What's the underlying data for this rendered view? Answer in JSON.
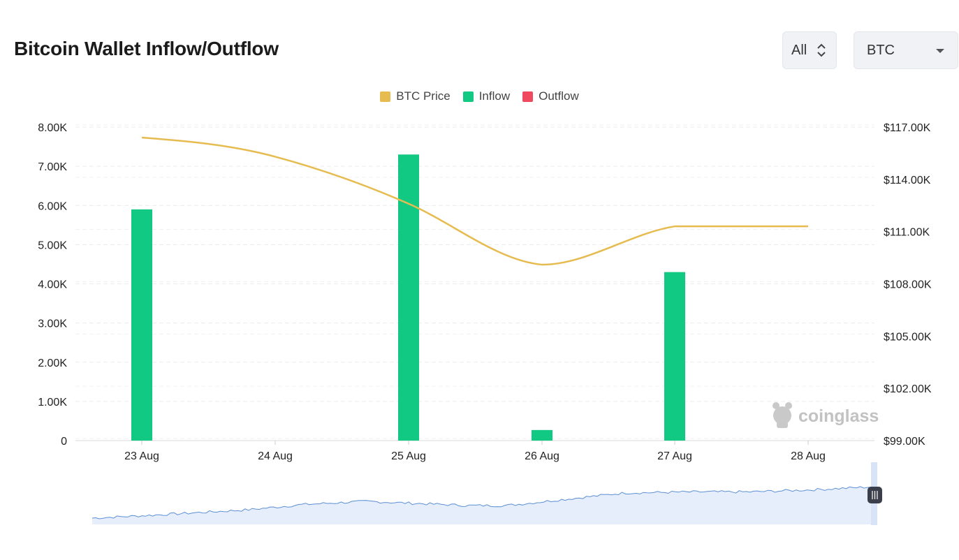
{
  "header": {
    "title": "Bitcoin Wallet Inflow/Outflow",
    "period_select": {
      "value": "All",
      "icon": "chevron-updown-icon"
    },
    "coin_select": {
      "value": "BTC",
      "icon": "caret-down-icon"
    }
  },
  "watermark": {
    "text": "coinglass",
    "icon": "coinglass-logo-icon"
  },
  "colors": {
    "price": "#e6bb4f",
    "inflow": "#12c983",
    "outflow": "#f0485e",
    "navigator": "#5b8fd4"
  },
  "chart_data": {
    "type": "bar",
    "categories": [
      "23 Aug",
      "24 Aug",
      "25 Aug",
      "26 Aug",
      "27 Aug",
      "28 Aug"
    ],
    "legend": [
      "BTC Price",
      "Inflow",
      "Outflow"
    ],
    "legend_position": "top-center",
    "series": [
      {
        "name": "Inflow",
        "type": "bar",
        "axis": "left",
        "values": [
          5900,
          0,
          7300,
          270,
          4300,
          0
        ]
      },
      {
        "name": "Outflow",
        "type": "bar",
        "axis": "left",
        "values": [
          0,
          0,
          0,
          0,
          0,
          0
        ]
      },
      {
        "name": "BTC Price",
        "type": "line",
        "axis": "right",
        "values": [
          116400,
          115300,
          112600,
          109100,
          111300,
          111300
        ]
      }
    ],
    "y_left": {
      "min": 0,
      "max": 8000,
      "ticks": [
        "0",
        "1.00K",
        "2.00K",
        "3.00K",
        "4.00K",
        "5.00K",
        "6.00K",
        "7.00K",
        "8.00K"
      ]
    },
    "y_right": {
      "min": 99000,
      "max": 117000,
      "ticks": [
        "$99.00K",
        "$102.00K",
        "$105.00K",
        "$108.00K",
        "$111.00K",
        "$114.00K",
        "$117.00K"
      ]
    },
    "grid": true
  }
}
